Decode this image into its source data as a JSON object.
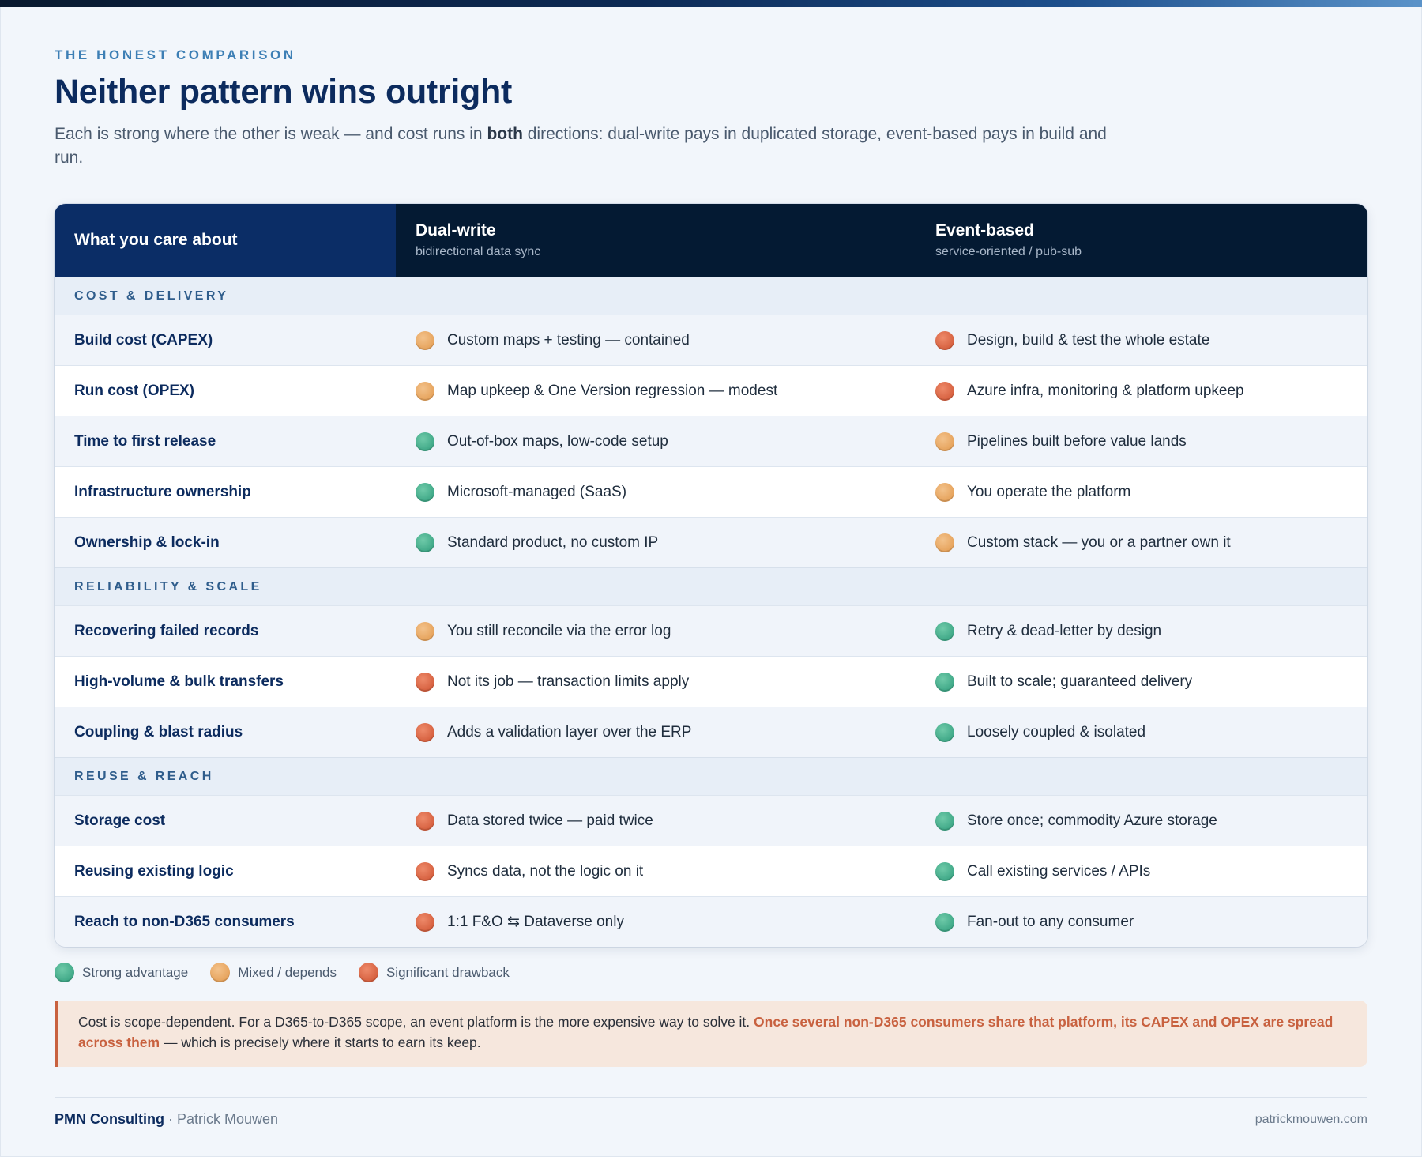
{
  "header": {
    "eyebrow": "THE HONEST COMPARISON",
    "title": "Neither pattern wins outright",
    "subtitle_before": "Each is strong where the other is weak — and cost runs in ",
    "subtitle_bold": "both",
    "subtitle_after": " directions: dual-write pays in duplicated storage, event-based pays in build and run."
  },
  "table": {
    "col_care": "What you care about",
    "col_dual": {
      "name": "Dual-write",
      "sub": "bidirectional data sync"
    },
    "col_event": {
      "name": "Event-based",
      "sub": "service-oriented / pub-sub"
    },
    "sections": [
      {
        "label": "COST & DELIVERY",
        "rows": [
          {
            "care": "Build cost (CAPEX)",
            "dual_rating": "mixed",
            "dual": "Custom maps + testing — contained",
            "event_rating": "bad",
            "event": "Design, build & test the whole estate"
          },
          {
            "care": "Run cost (OPEX)",
            "dual_rating": "mixed",
            "dual": "Map upkeep & One Version regression — modest",
            "event_rating": "bad",
            "event": "Azure infra, monitoring & platform upkeep"
          },
          {
            "care": "Time to first release",
            "dual_rating": "good",
            "dual": "Out-of-box maps, low-code setup",
            "event_rating": "mixed",
            "event": "Pipelines built before value lands"
          },
          {
            "care": "Infrastructure ownership",
            "dual_rating": "good",
            "dual": "Microsoft-managed (SaaS)",
            "event_rating": "mixed",
            "event": "You operate the platform"
          },
          {
            "care": "Ownership & lock-in",
            "dual_rating": "good",
            "dual": "Standard product, no custom IP",
            "event_rating": "mixed",
            "event": "Custom stack — you or a partner own it"
          }
        ]
      },
      {
        "label": "RELIABILITY & SCALE",
        "rows": [
          {
            "care": "Recovering failed records",
            "dual_rating": "mixed",
            "dual": "You still reconcile via the error log",
            "event_rating": "good",
            "event": "Retry & dead-letter by design"
          },
          {
            "care": "High-volume & bulk transfers",
            "dual_rating": "bad",
            "dual": "Not its job — transaction limits apply",
            "event_rating": "good",
            "event": "Built to scale; guaranteed delivery"
          },
          {
            "care": "Coupling & blast radius",
            "dual_rating": "bad",
            "dual": "Adds a validation layer over the ERP",
            "event_rating": "good",
            "event": "Loosely coupled & isolated"
          }
        ]
      },
      {
        "label": "REUSE & REACH",
        "rows": [
          {
            "care": "Storage cost",
            "dual_rating": "bad",
            "dual": "Data stored twice — paid twice",
            "event_rating": "good",
            "event": "Store once; commodity Azure storage"
          },
          {
            "care": "Reusing existing logic",
            "dual_rating": "bad",
            "dual": "Syncs data, not the logic on it",
            "event_rating": "good",
            "event": "Call existing services / APIs"
          },
          {
            "care": "Reach to non-D365 consumers",
            "dual_rating": "bad",
            "dual": "1:1 F&O ⇆ Dataverse only",
            "event_rating": "good",
            "event": "Fan-out to any consumer"
          }
        ]
      }
    ]
  },
  "legend": {
    "good": "Strong advantage",
    "mixed": "Mixed / depends",
    "bad": "Significant drawback"
  },
  "callout": {
    "before": "Cost is scope-dependent. For a D365-to-D365 scope, an event platform is the more expensive way to solve it. ",
    "highlight": "Once several non-D365 consumers share that platform, its CAPEX and OPEX are spread across them",
    "after": " — which is precisely where it starts to earn its keep."
  },
  "footer": {
    "brand": "PMN Consulting",
    "separator": " · ",
    "author": "Patrick Mouwen",
    "site": "patrickmouwen.com"
  },
  "colors": {
    "good": "#3fa887",
    "mixed": "#e6a35c",
    "bad": "#d6603f",
    "navy": "#0b2d66",
    "header_dark": "#041a33",
    "accent": "#c8613f"
  }
}
